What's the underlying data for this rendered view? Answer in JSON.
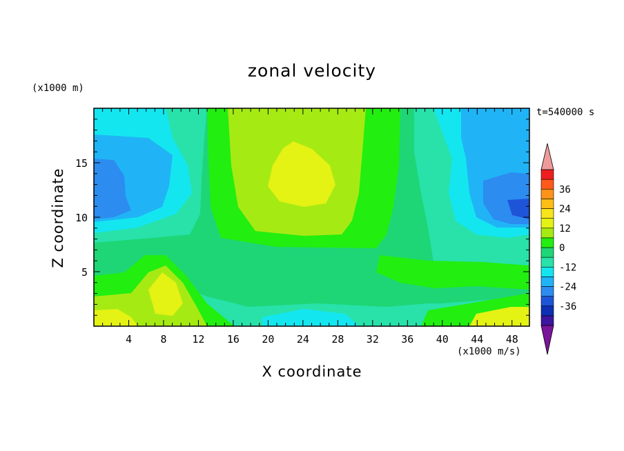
{
  "title": "zonal velocity",
  "z_unit": "(x1000 m)",
  "time_label": "t=540000 s",
  "x_unit_label": "(x1000 m/s)",
  "colors": {
    "levels": [
      "#7a149a",
      "#3c15a0",
      "#0c2fb4",
      "#1e54d8",
      "#2c8cf0",
      "#20b4f6",
      "#14e6f0",
      "#28e2aa",
      "#1ed676",
      "#22ee10",
      "#a6ea14",
      "#e4f214",
      "#f8e41a",
      "#ffbe14",
      "#ff9218",
      "#ff5a1c",
      "#ee1e20",
      "#ef9a9a"
    ]
  },
  "chart_data": {
    "type": "heatmap",
    "title": "zonal velocity",
    "xlabel": "X coordinate",
    "ylabel": "Z coordinate",
    "xlim": [
      0,
      50
    ],
    "ylim": [
      0,
      20
    ],
    "x_ticks": [
      4,
      8,
      12,
      16,
      20,
      24,
      28,
      32,
      36,
      40,
      44,
      48
    ],
    "y_ticks": [
      5,
      10,
      15
    ],
    "colorbar": {
      "levels": [
        -42,
        -36,
        -30,
        -24,
        -18,
        -12,
        -6,
        0,
        6,
        12,
        18,
        24,
        30,
        36,
        42
      ],
      "tick_values": [
        -36,
        -24,
        -12,
        0,
        12,
        24,
        36
      ],
      "tick_labels": [
        "-36",
        "-24",
        "-12",
        "0",
        "12",
        "24",
        "36"
      ],
      "extend": "both"
    },
    "features": [
      {
        "x": 24,
        "z": 14,
        "value": 16
      },
      {
        "x": 3,
        "z": 12,
        "value": -23
      },
      {
        "x": 48,
        "z": 11,
        "value": -25
      },
      {
        "x": 8,
        "z": 4,
        "value": 11
      },
      {
        "x": 1,
        "z": 1,
        "value": 14
      },
      {
        "x": 46,
        "z": 1,
        "value": 12
      },
      {
        "x": 26,
        "z": 1,
        "value": -12
      }
    ]
  }
}
